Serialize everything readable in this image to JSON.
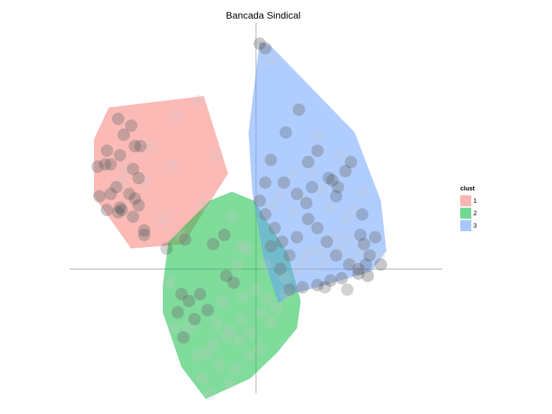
{
  "chart_data": {
    "type": "scatter",
    "title": "Bancada Sindical",
    "xlabel": "",
    "ylabel": "",
    "grid": false,
    "axes_lines": "cross-at-origin",
    "legend": {
      "title": "clust",
      "placement": "right",
      "entries": [
        "1",
        "2",
        "3"
      ]
    },
    "xlim": [
      -1.0,
      1.0
    ],
    "ylim": [
      -1.0,
      1.0
    ],
    "series": [
      {
        "name": "1",
        "color": "#f8766d",
        "hull": [
          [
            -0.87,
            0.57
          ],
          [
            -0.79,
            0.71
          ],
          [
            -0.28,
            0.76
          ],
          [
            -0.15,
            0.42
          ],
          [
            -0.39,
            0.11
          ],
          [
            -0.67,
            0.09
          ],
          [
            -0.87,
            0.32
          ],
          [
            -0.87,
            0.57
          ]
        ],
        "points": [
          [
            -0.74,
            0.66
          ],
          [
            -0.67,
            0.63
          ],
          [
            -0.71,
            0.59
          ],
          [
            -0.65,
            0.54
          ],
          [
            -0.62,
            0.54
          ],
          [
            -0.8,
            0.52
          ],
          [
            -0.73,
            0.5
          ],
          [
            -0.78,
            0.46
          ],
          [
            -0.81,
            0.46
          ],
          [
            -0.85,
            0.45
          ],
          [
            -0.66,
            0.44
          ],
          [
            -0.63,
            0.4
          ],
          [
            -0.75,
            0.36
          ],
          [
            -0.68,
            0.33
          ],
          [
            -0.78,
            0.33
          ],
          [
            -0.84,
            0.32
          ],
          [
            -0.65,
            0.31
          ],
          [
            -0.63,
            0.28
          ],
          [
            -0.73,
            0.27
          ],
          [
            -0.72,
            0.26
          ],
          [
            -0.74,
            0.25
          ],
          [
            -0.8,
            0.26
          ],
          [
            -0.66,
            0.23
          ],
          [
            -0.6,
            0.17
          ],
          [
            -0.6,
            0.15
          ],
          [
            -0.72,
            0.38
          ],
          [
            -0.7,
            0.44
          ],
          [
            -0.6,
            0.38
          ],
          [
            -0.57,
            0.54
          ],
          [
            -0.43,
            0.67
          ],
          [
            -0.31,
            0.74
          ],
          [
            -0.21,
            0.5
          ],
          [
            -0.45,
            0.45
          ],
          [
            -0.5,
            0.22
          ],
          [
            -0.41,
            0.15
          ]
        ]
      },
      {
        "name": "2",
        "color": "#00ba38",
        "hull": [
          [
            -0.47,
            0.12
          ],
          [
            -0.25,
            0.3
          ],
          [
            -0.13,
            0.34
          ],
          [
            -0.01,
            0.3
          ],
          [
            0.17,
            0.07
          ],
          [
            0.24,
            -0.14
          ],
          [
            0.22,
            -0.26
          ],
          [
            0.11,
            -0.37
          ],
          [
            -0.03,
            -0.48
          ],
          [
            -0.27,
            -0.57
          ],
          [
            -0.4,
            -0.43
          ],
          [
            -0.5,
            -0.19
          ],
          [
            -0.5,
            -0.07
          ],
          [
            -0.47,
            0.12
          ]
        ],
        "points": [
          [
            -0.38,
            0.13
          ],
          [
            -0.23,
            0.11
          ],
          [
            -0.17,
            0.15
          ],
          [
            -0.28,
            0.28
          ],
          [
            -0.13,
            0.23
          ],
          [
            -0.05,
            0.09
          ],
          [
            -0.16,
            -0.03
          ],
          [
            -0.12,
            -0.06
          ],
          [
            -0.3,
            -0.11
          ],
          [
            -0.36,
            -0.14
          ],
          [
            -0.4,
            -0.11
          ],
          [
            -0.47,
            -0.06
          ],
          [
            -0.42,
            -0.19
          ],
          [
            -0.33,
            -0.22
          ],
          [
            -0.26,
            -0.18
          ],
          [
            -0.21,
            -0.24
          ],
          [
            -0.14,
            -0.27
          ],
          [
            -0.09,
            -0.31
          ],
          [
            -0.03,
            -0.28
          ],
          [
            0.03,
            -0.19
          ],
          [
            0.08,
            -0.23
          ],
          [
            0.11,
            -0.17
          ],
          [
            0.16,
            -0.11
          ],
          [
            0.06,
            -0.13
          ],
          [
            0.0,
            -0.09
          ],
          [
            -0.07,
            -0.12
          ],
          [
            -0.18,
            -0.14
          ],
          [
            -0.23,
            -0.33
          ],
          [
            -0.31,
            -0.38
          ],
          [
            -0.39,
            -0.3
          ],
          [
            -0.29,
            -0.48
          ],
          [
            -0.2,
            -0.42
          ],
          [
            -0.11,
            -0.44
          ],
          [
            -0.04,
            -0.38
          ],
          [
            0.02,
            -0.35
          ],
          [
            -0.08,
            -0.22
          ],
          [
            -0.16,
            -0.3
          ],
          [
            -0.26,
            -0.37
          ],
          [
            -0.36,
            -0.26
          ],
          [
            -0.44,
            -0.26
          ],
          [
            -0.25,
            -0.55
          ],
          [
            -0.14,
            -0.5
          ],
          [
            -0.1,
            0.02
          ],
          [
            -0.08,
            0.1
          ],
          [
            0.05,
            0.02
          ]
        ]
      },
      {
        "name": "3",
        "color": "#619cff",
        "hull": [
          [
            0.02,
            1.0
          ],
          [
            0.08,
            0.98
          ],
          [
            0.53,
            0.6
          ],
          [
            0.67,
            0.3
          ],
          [
            0.7,
            0.08
          ],
          [
            0.62,
            -0.01
          ],
          [
            0.33,
            -0.08
          ],
          [
            0.19,
            -0.11
          ],
          [
            0.12,
            -0.15
          ],
          [
            0.04,
            0.05
          ],
          [
            -0.02,
            0.34
          ],
          [
            -0.04,
            0.6
          ],
          [
            0.02,
            1.0
          ]
        ],
        "points": [
          [
            0.02,
            0.99
          ],
          [
            0.05,
            0.97
          ],
          [
            0.08,
            0.92
          ],
          [
            0.23,
            0.7
          ],
          [
            0.33,
            0.58
          ],
          [
            0.45,
            0.5
          ],
          [
            0.51,
            0.47
          ],
          [
            0.48,
            0.43
          ],
          [
            0.44,
            0.36
          ],
          [
            0.41,
            0.39
          ],
          [
            0.33,
            0.52
          ],
          [
            0.28,
            0.47
          ],
          [
            0.22,
            0.33
          ],
          [
            0.15,
            0.38
          ],
          [
            0.08,
            0.48
          ],
          [
            0.05,
            0.38
          ],
          [
            0.02,
            0.3
          ],
          [
            0.05,
            0.24
          ],
          [
            0.1,
            0.18
          ],
          [
            0.14,
            0.12
          ],
          [
            0.18,
            0.06
          ],
          [
            0.22,
            0.14
          ],
          [
            0.28,
            0.22
          ],
          [
            0.33,
            0.18
          ],
          [
            0.38,
            0.12
          ],
          [
            0.43,
            0.06
          ],
          [
            0.5,
            0.02
          ],
          [
            0.55,
            0.0
          ],
          [
            0.58,
            0.11
          ],
          [
            0.61,
            0.06
          ],
          [
            0.64,
            0.14
          ],
          [
            0.67,
            0.02
          ],
          [
            0.6,
            -0.03
          ],
          [
            0.55,
            -0.02
          ],
          [
            0.46,
            -0.04
          ],
          [
            0.4,
            -0.05
          ],
          [
            0.33,
            -0.07
          ],
          [
            0.25,
            -0.08
          ],
          [
            0.18,
            -0.09
          ],
          [
            0.13,
            0.0
          ],
          [
            0.08,
            0.1
          ],
          [
            0.25,
            0.04
          ],
          [
            0.31,
            0.0
          ],
          [
            0.37,
            0.03
          ],
          [
            0.2,
            0.25
          ],
          [
            0.26,
            0.3
          ],
          [
            0.35,
            0.35
          ],
          [
            0.4,
            0.27
          ],
          [
            0.48,
            0.22
          ],
          [
            0.53,
            0.26
          ],
          [
            0.57,
            0.34
          ],
          [
            0.3,
            0.42
          ],
          [
            0.2,
            0.42
          ],
          [
            0.13,
            0.33
          ],
          [
            0.09,
            0.28
          ],
          [
            0.42,
            0.14
          ],
          [
            0.46,
            0.09
          ],
          [
            0.52,
            0.04
          ],
          [
            0.56,
            0.08
          ],
          [
            0.66,
            0.06
          ],
          [
            0.5,
            0.14
          ],
          [
            0.35,
            0.08
          ],
          [
            0.28,
            0.08
          ],
          [
            0.22,
            0.0
          ],
          [
            0.16,
            -0.04
          ]
        ]
      }
    ],
    "highlight_points": [
      [
        -0.74,
        0.66
      ],
      [
        -0.67,
        0.63
      ],
      [
        -0.71,
        0.59
      ],
      [
        -0.65,
        0.54
      ],
      [
        -0.62,
        0.54
      ],
      [
        -0.8,
        0.52
      ],
      [
        -0.73,
        0.5
      ],
      [
        -0.78,
        0.46
      ],
      [
        -0.81,
        0.46
      ],
      [
        -0.85,
        0.45
      ],
      [
        -0.66,
        0.44
      ],
      [
        -0.63,
        0.4
      ],
      [
        -0.75,
        0.36
      ],
      [
        -0.68,
        0.33
      ],
      [
        -0.78,
        0.33
      ],
      [
        -0.84,
        0.32
      ],
      [
        -0.65,
        0.31
      ],
      [
        -0.63,
        0.28
      ],
      [
        -0.73,
        0.27
      ],
      [
        -0.72,
        0.26
      ],
      [
        -0.74,
        0.25
      ],
      [
        -0.8,
        0.26
      ],
      [
        -0.66,
        0.23
      ],
      [
        -0.6,
        0.17
      ],
      [
        -0.6,
        0.15
      ],
      [
        -0.38,
        0.13
      ],
      [
        -0.23,
        0.11
      ],
      [
        -0.17,
        0.15
      ],
      [
        -0.16,
        -0.03
      ],
      [
        -0.12,
        -0.06
      ],
      [
        -0.3,
        -0.11
      ],
      [
        -0.36,
        -0.14
      ],
      [
        -0.4,
        -0.11
      ],
      [
        -0.42,
        -0.19
      ],
      [
        -0.33,
        -0.22
      ],
      [
        -0.26,
        -0.18
      ],
      [
        -0.39,
        -0.3
      ],
      [
        0.02,
        0.99
      ],
      [
        0.05,
        0.97
      ],
      [
        0.23,
        0.7
      ],
      [
        0.51,
        0.47
      ],
      [
        0.48,
        0.43
      ],
      [
        0.44,
        0.36
      ],
      [
        0.41,
        0.39
      ],
      [
        0.33,
        0.52
      ],
      [
        0.28,
        0.47
      ],
      [
        0.22,
        0.33
      ],
      [
        0.15,
        0.38
      ],
      [
        0.08,
        0.48
      ],
      [
        0.05,
        0.38
      ],
      [
        0.02,
        0.3
      ],
      [
        0.05,
        0.24
      ],
      [
        0.1,
        0.18
      ],
      [
        0.14,
        0.12
      ],
      [
        0.18,
        0.06
      ],
      [
        0.22,
        0.14
      ],
      [
        0.28,
        0.22
      ],
      [
        0.33,
        0.18
      ],
      [
        0.38,
        0.12
      ],
      [
        0.43,
        0.06
      ],
      [
        0.5,
        0.02
      ],
      [
        0.55,
        0.0
      ],
      [
        0.58,
        0.11
      ],
      [
        0.61,
        0.06
      ],
      [
        0.64,
        0.14
      ],
      [
        0.67,
        0.02
      ],
      [
        0.6,
        -0.03
      ],
      [
        0.55,
        -0.02
      ],
      [
        0.46,
        -0.04
      ],
      [
        0.4,
        -0.05
      ],
      [
        0.33,
        -0.07
      ],
      [
        0.25,
        -0.08
      ],
      [
        0.18,
        -0.09
      ],
      [
        0.13,
        0.0
      ],
      [
        0.08,
        0.1
      ],
      [
        0.43,
        0.32
      ],
      [
        0.39,
        0.4
      ],
      [
        0.16,
        0.6
      ],
      [
        0.3,
        0.36
      ],
      [
        0.27,
        0.29
      ],
      [
        0.57,
        0.24
      ],
      [
        0.59,
        0.02
      ],
      [
        0.49,
        -0.09
      ],
      [
        0.37,
        -0.08
      ],
      [
        0.56,
        0.15
      ],
      [
        -0.48,
        0.09
      ]
    ]
  }
}
